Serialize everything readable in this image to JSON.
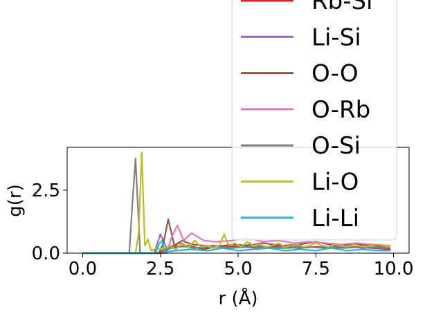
{
  "chart_data": {
    "type": "line",
    "xlabel": "r (Å)",
    "ylabel": "g(r)",
    "xlim": [
      -0.5,
      10.5
    ],
    "ylim": [
      0,
      4.2
    ],
    "xticks": [
      0.0,
      2.5,
      5.0,
      7.5,
      10.0
    ],
    "xtick_labels": [
      "0.0",
      "2.5",
      "5.0",
      "7.5",
      "10.0"
    ],
    "yticks": [
      0.0,
      2.5
    ],
    "ytick_labels": [
      "0.0",
      "2.5"
    ],
    "grid": false,
    "legend_position": "upper-right (overflowing top of axes)",
    "series": [
      {
        "name": "Rb-Si",
        "color": "#d62728",
        "x": [
          0,
          2.4,
          2.8,
          3.4,
          3.9,
          4.4,
          5.1,
          5.7,
          6.3,
          6.9,
          7.5,
          8.1,
          8.7,
          9.3,
          9.9
        ],
        "y": [
          0,
          0,
          0.2,
          0.3,
          0.15,
          0.3,
          0.25,
          0.2,
          0.3,
          0.2,
          0.25,
          0.2,
          0.25,
          0.2,
          0.15
        ]
      },
      {
        "name": "Li-Si",
        "color": "#9467bd",
        "x": [
          0,
          2.3,
          2.5,
          2.7,
          3.1,
          3.6,
          4.2,
          4.8,
          5.4,
          6.0,
          6.6,
          7.2,
          7.8,
          8.4,
          9.0,
          9.6,
          9.9
        ],
        "y": [
          0,
          0,
          0.75,
          0.2,
          0.4,
          0.2,
          0.3,
          0.2,
          0.35,
          0.2,
          0.3,
          0.25,
          0.2,
          0.3,
          0.2,
          0.25,
          0.2
        ]
      },
      {
        "name": "O-O",
        "color": "#8c564b",
        "x": [
          0,
          2.45,
          2.6,
          2.75,
          2.95,
          3.2,
          3.5,
          3.9,
          4.3,
          4.8,
          5.3,
          5.8,
          6.4,
          7.0,
          7.5,
          8.1,
          8.7,
          9.3,
          9.9
        ],
        "y": [
          0,
          0,
          0.4,
          1.35,
          0.3,
          0.5,
          0.35,
          0.3,
          0.25,
          0.35,
          0.3,
          0.4,
          0.3,
          0.35,
          0.45,
          0.3,
          0.35,
          0.3,
          0.3
        ]
      },
      {
        "name": "O-Rb",
        "color": "#e377c2",
        "x": [
          0,
          2.7,
          2.85,
          3.05,
          3.25,
          3.5,
          3.9,
          4.3,
          4.8,
          5.3,
          5.8,
          6.3,
          6.8,
          7.3,
          7.8,
          8.3,
          8.8,
          9.3,
          9.9
        ],
        "y": [
          0,
          0,
          0.6,
          1.1,
          0.5,
          0.8,
          0.5,
          0.45,
          0.5,
          0.6,
          0.45,
          0.5,
          0.4,
          0.45,
          0.4,
          0.35,
          0.4,
          0.35,
          0.3
        ]
      },
      {
        "name": "O-Si",
        "color": "#7f7f7f",
        "x": [
          0,
          1.5,
          1.6,
          1.7,
          1.85,
          2.5,
          3.0,
          3.6,
          4.2,
          4.8,
          5.4,
          6.0,
          6.6,
          7.2,
          7.8,
          8.4,
          9.0,
          9.6,
          9.9
        ],
        "y": [
          0,
          0,
          2.0,
          3.75,
          0,
          0,
          0.3,
          0.2,
          0.25,
          0.2,
          0.25,
          0.2,
          0.2,
          0.25,
          0.2,
          0.2,
          0.25,
          0.2,
          0.2
        ]
      },
      {
        "name": "Li-O",
        "color": "#bcbd22",
        "x": [
          0,
          1.7,
          1.8,
          1.9,
          2.0,
          2.1,
          2.2,
          2.4,
          2.6,
          2.8,
          3.0,
          3.2,
          3.4,
          3.6,
          3.8,
          4.0,
          4.2,
          4.4,
          4.55,
          4.7,
          4.9,
          5.1,
          5.3,
          5.5,
          5.7,
          5.9,
          6.1,
          6.3,
          6.5,
          6.7,
          6.9,
          7.1,
          7.3,
          7.5,
          7.7,
          7.9,
          8.1,
          8.3,
          8.5,
          8.7,
          8.9,
          9.1,
          9.3,
          9.5,
          9.7,
          9.9
        ],
        "y": [
          0,
          0,
          0.8,
          4.0,
          0.3,
          0.55,
          0.1,
          0.2,
          0.15,
          0.3,
          0.15,
          0.4,
          0.2,
          0.5,
          0.25,
          0.3,
          0.2,
          0.3,
          0.75,
          0.3,
          0.4,
          0.25,
          0.45,
          0.3,
          0.35,
          0.25,
          0.3,
          0.4,
          0.25,
          0.3,
          0.35,
          0.25,
          0.3,
          0.4,
          0.3,
          0.25,
          0.35,
          0.3,
          0.25,
          0.35,
          0.3,
          0.25,
          0.3,
          0.35,
          0.3,
          0.25
        ]
      },
      {
        "name": "Li-Li",
        "color": "#17becf",
        "x": [
          0,
          2.35,
          2.45,
          2.55,
          2.65,
          3.0,
          3.5,
          4.0,
          4.5,
          5.0,
          5.5,
          6.0,
          6.5,
          7.0,
          7.5,
          8.0,
          8.5,
          9.0,
          9.5,
          9.9
        ],
        "y": [
          0,
          0,
          0.35,
          0.5,
          0.05,
          0.1,
          0.15,
          0.1,
          0.2,
          0.1,
          0.15,
          0.2,
          0.1,
          0.15,
          0.1,
          0.2,
          0.1,
          0.15,
          0.1,
          0.1
        ]
      }
    ]
  }
}
